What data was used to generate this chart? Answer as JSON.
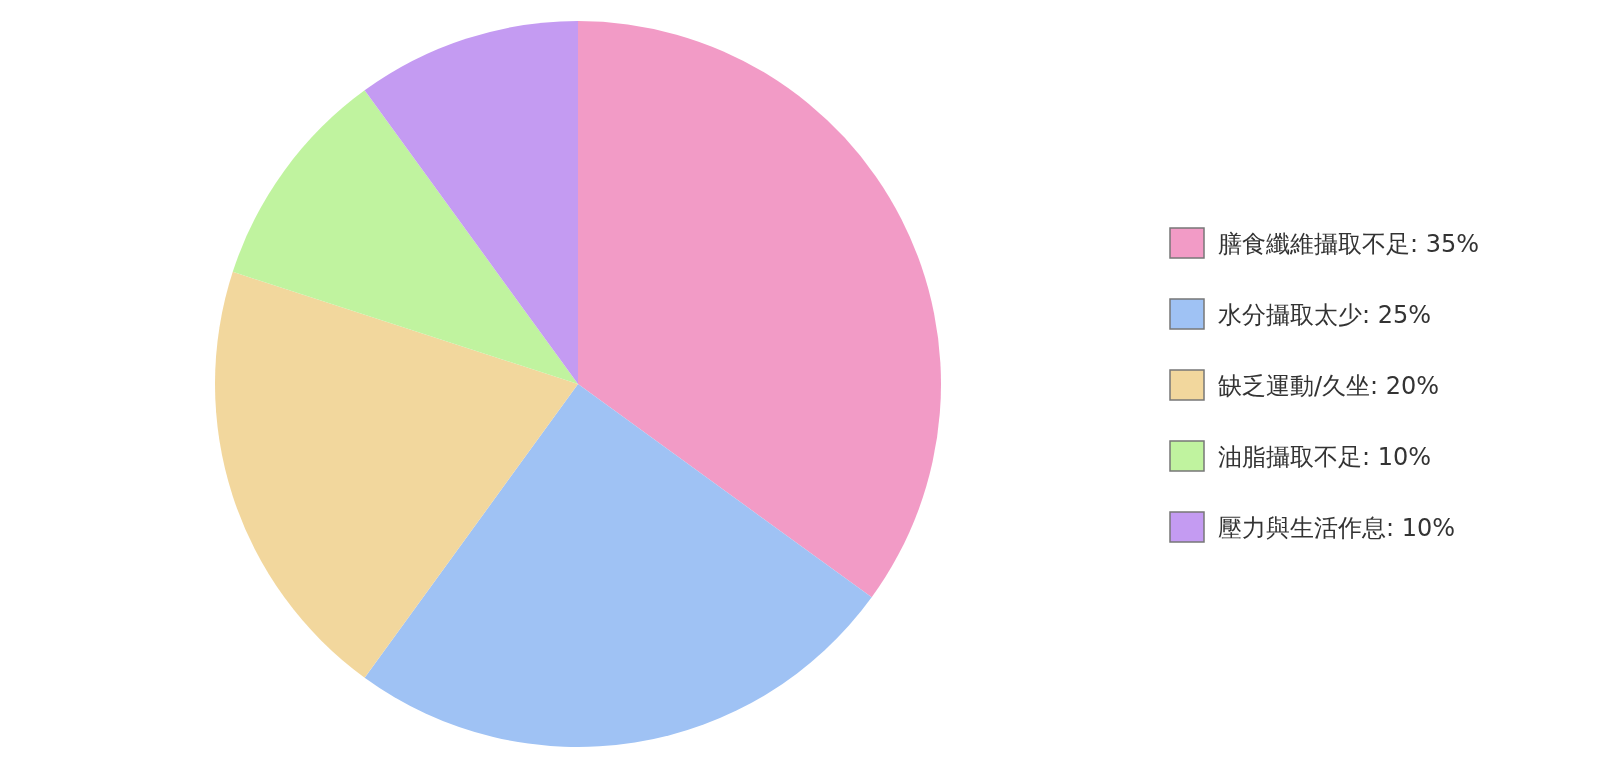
{
  "chart_data": {
    "type": "pie",
    "legend": "right",
    "categories": [
      "膳食纖維攝取不足: 35%",
      "水分攝取太少: 25%",
      "缺乏運動/久坐: 20%",
      "油脂攝取不足: 10%",
      "壓力與生活作息: 10%"
    ],
    "values": [
      35,
      25,
      20,
      10,
      10
    ],
    "colors": [
      "#f29bc6",
      "#9fc2f4",
      "#f2d79d",
      "#c0f39f",
      "#c49bf2"
    ]
  }
}
